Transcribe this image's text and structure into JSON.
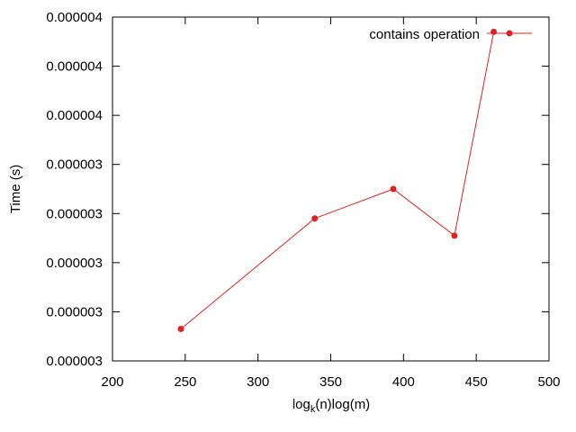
{
  "chart_data": {
    "type": "line",
    "title": "",
    "xlabel_main": "log",
    "xlabel_sub": "k",
    "xlabel_rest": "(n)log(m)",
    "ylabel": "Time (s)",
    "xlim": [
      200,
      500
    ],
    "ylim": [
      2.7e-06,
      4.1e-06
    ],
    "x_ticks": [
      200,
      250,
      300,
      350,
      400,
      450,
      500
    ],
    "y_tick_values": [
      2.7e-06,
      2.9e-06,
      3.1e-06,
      3.3e-06,
      3.5e-06,
      3.7e-06,
      3.9e-06,
      4.1e-06
    ],
    "y_tick_labels": [
      "0.000003",
      "0.000003",
      "0.000003",
      "0.000003",
      "0.000003",
      "0.000004",
      "0.000004",
      "0.000004"
    ],
    "grid": false,
    "legend_position": "top-right",
    "series": [
      {
        "name": "contains operation",
        "color": "#dd2222",
        "x": [
          247,
          339,
          393,
          435,
          462
        ],
        "y": [
          2.83e-06,
          3.28e-06,
          3.4e-06,
          3.21e-06,
          4.04e-06
        ]
      }
    ]
  }
}
